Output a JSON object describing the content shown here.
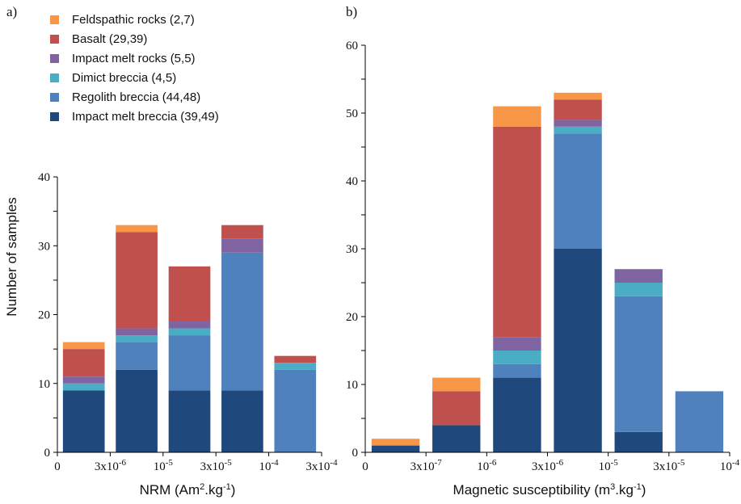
{
  "legend": [
    {
      "label": "Feldspathic rocks (2,7)",
      "color": "#f79646"
    },
    {
      "label": "Basalt (29,39)",
      "color": "#c0504d"
    },
    {
      "label": "Impact melt rocks (5,5)",
      "color": "#8064a2"
    },
    {
      "label": "Dimict breccia (4,5)",
      "color": "#4bacc6"
    },
    {
      "label": "Regolith breccia (44,48)",
      "color": "#4f81bd"
    },
    {
      "label": "Impact melt breccia (39,49)",
      "color": "#1f497d"
    }
  ],
  "chart_data": [
    {
      "type": "bar",
      "stacked": true,
      "panel_label": "a)",
      "xlabel_parts": [
        "NRM (Am",
        "2",
        ".kg",
        "-1",
        ")"
      ],
      "ylabel": "Number of samples",
      "ylim": [
        0,
        40
      ],
      "yticks": [
        "0",
        "10",
        "20",
        "30",
        "40"
      ],
      "ytick_values": [
        0,
        10,
        20,
        30,
        40
      ],
      "xticks": [
        {
          "pos": 0,
          "base": "0",
          "exp": ""
        },
        {
          "pos": 1,
          "base": "3x10",
          "exp": "-6"
        },
        {
          "pos": 2,
          "base": "10",
          "exp": "-5"
        },
        {
          "pos": 3,
          "base": "3x10",
          "exp": "-5"
        },
        {
          "pos": 4,
          "base": "10",
          "exp": "-4"
        },
        {
          "pos": 5,
          "base": "3x10",
          "exp": "-4"
        }
      ],
      "bin_count": 5,
      "grid": false,
      "series": [
        {
          "name": "Impact melt breccia (39,49)",
          "color": "#1f497d",
          "values": [
            9,
            12,
            9,
            9,
            0
          ]
        },
        {
          "name": "Regolith breccia (44,48)",
          "color": "#4f81bd",
          "values": [
            0,
            4,
            8,
            20,
            12
          ]
        },
        {
          "name": "Dimict breccia (4,5)",
          "color": "#4bacc6",
          "values": [
            1,
            1,
            1,
            0,
            1
          ]
        },
        {
          "name": "Impact melt rocks (5,5)",
          "color": "#8064a2",
          "values": [
            1,
            1,
            1,
            2,
            0
          ]
        },
        {
          "name": "Basalt (29,39)",
          "color": "#c0504d",
          "values": [
            4,
            14,
            8,
            2,
            1
          ]
        },
        {
          "name": "Feldspathic rocks (2,7)",
          "color": "#f79646",
          "values": [
            1,
            1,
            0,
            0,
            0
          ]
        }
      ]
    },
    {
      "type": "bar",
      "stacked": true,
      "panel_label": "b)",
      "xlabel_parts": [
        "Magnetic susceptibility (m",
        "3",
        ".kg",
        "-1",
        ")"
      ],
      "ylabel": "",
      "ylim": [
        0,
        60
      ],
      "yticks": [
        "0",
        "10",
        "20",
        "30",
        "40",
        "50",
        "60"
      ],
      "ytick_values": [
        0,
        10,
        20,
        30,
        40,
        50,
        60
      ],
      "xticks": [
        {
          "pos": 0,
          "base": "0",
          "exp": ""
        },
        {
          "pos": 1,
          "base": "3x10",
          "exp": "-7"
        },
        {
          "pos": 2,
          "base": "10",
          "exp": "-6"
        },
        {
          "pos": 3,
          "base": "3x10",
          "exp": "-6"
        },
        {
          "pos": 4,
          "base": "10",
          "exp": "-5"
        },
        {
          "pos": 5,
          "base": "3x10",
          "exp": "-5"
        },
        {
          "pos": 6,
          "base": "10",
          "exp": "-4"
        }
      ],
      "bin_count": 6,
      "grid": false,
      "series": [
        {
          "name": "Impact melt breccia (39,49)",
          "color": "#1f497d",
          "values": [
            1,
            4,
            11,
            30,
            3,
            0
          ]
        },
        {
          "name": "Regolith breccia (44,48)",
          "color": "#4f81bd",
          "values": [
            0,
            0,
            2,
            17,
            20,
            9
          ]
        },
        {
          "name": "Dimict breccia (4,5)",
          "color": "#4bacc6",
          "values": [
            0,
            0,
            2,
            1,
            2,
            0
          ]
        },
        {
          "name": "Impact melt rocks (5,5)",
          "color": "#8064a2",
          "values": [
            0,
            0,
            2,
            1,
            2,
            0
          ]
        },
        {
          "name": "Basalt (29,39)",
          "color": "#c0504d",
          "values": [
            0,
            5,
            31,
            3,
            0,
            0
          ]
        },
        {
          "name": "Feldspathic rocks (2,7)",
          "color": "#f79646",
          "values": [
            1,
            2,
            3,
            1,
            0,
            0
          ]
        }
      ]
    }
  ]
}
